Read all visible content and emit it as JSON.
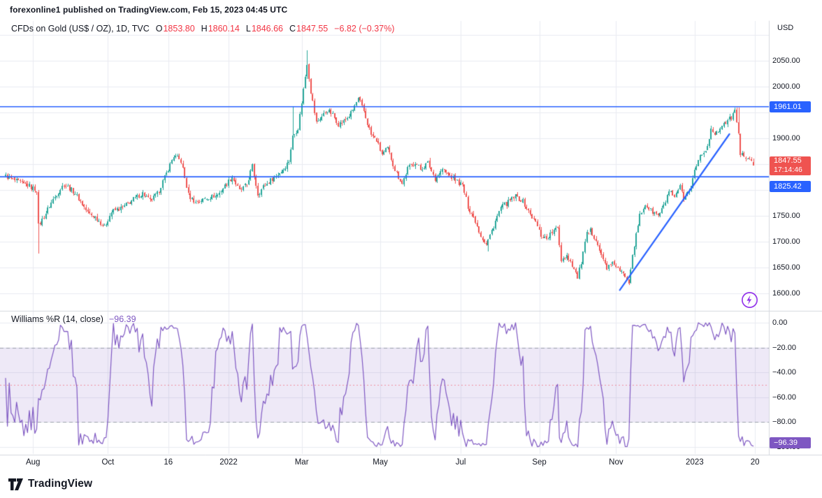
{
  "attribution": "forexonline1 published on TradingView.com, Feb 15, 2023 04:45 UTC",
  "footer": {
    "brand": "TradingView"
  },
  "icons": {
    "flash": "lightning-bolt-in-circle",
    "logo": "tradingview-mark"
  },
  "main_chart": {
    "legend": {
      "symbol": "CFDs on Gold (US$ / OZ), 1D, TVC",
      "o_label": "O",
      "o": "1853.80",
      "h_label": "H",
      "h": "1860.14",
      "l_label": "L",
      "l": "1846.66",
      "c_label": "C",
      "c": "1847.55",
      "change": "−6.82 (−0.37%)"
    },
    "price_axis": {
      "currency": "USD",
      "ticks": [
        {
          "value": 2050,
          "label": "2050.00"
        },
        {
          "value": 2000,
          "label": "2000.00"
        },
        {
          "value": 1900,
          "label": "1900.00"
        },
        {
          "value": 1750,
          "label": "1750.00"
        },
        {
          "value": 1700,
          "label": "1700.00"
        },
        {
          "value": 1650,
          "label": "1650.00"
        },
        {
          "value": 1600,
          "label": "1600.00"
        }
      ]
    },
    "badges": {
      "resistance": "1961.01",
      "last_price": "1847.55",
      "countdown": "17:14:46",
      "support": "1825.42"
    }
  },
  "indicator": {
    "title": "Williams %R (14, close)",
    "value": "−96.39",
    "badge": "−96.39",
    "ticks": [
      {
        "value": 0,
        "label": "0.00"
      },
      {
        "value": -20,
        "label": "−20.00"
      },
      {
        "value": -40,
        "label": "−40.00"
      },
      {
        "value": -60,
        "label": "−60.00"
      },
      {
        "value": -80,
        "label": "−80.00"
      },
      {
        "value": -100,
        "label": "−100.00"
      }
    ]
  },
  "chart_data": {
    "type": "candlestick",
    "title": "CFDs on Gold (US$ / OZ), 1D, TVC",
    "total_candles": 410,
    "y_axis": {
      "min": 1566,
      "max": 2127,
      "tick_step": 50,
      "visible_ticks": [
        1600,
        1650,
        1700,
        1750,
        1900,
        2000,
        2050
      ]
    },
    "ohlc_current": {
      "open": 1853.8,
      "high": 1860.14,
      "low": 1846.66,
      "close": 1847.55,
      "change": -6.82,
      "change_pct": -0.37
    },
    "levels": [
      {
        "value": 1961.01,
        "color": "#2962ff"
      },
      {
        "value": 1825.42,
        "color": "#2962ff"
      }
    ],
    "trendline": {
      "from": {
        "i": 336,
        "price": 1606
      },
      "to": {
        "i": 396,
        "price": 1908
      },
      "color": "#2962ff"
    },
    "time_ticks": [
      {
        "i": 15,
        "label": "Aug"
      },
      {
        "i": 56,
        "label": "Oct"
      },
      {
        "i": 89,
        "label": "16"
      },
      {
        "i": 122,
        "label": "2022"
      },
      {
        "i": 162,
        "label": "Mar"
      },
      {
        "i": 205,
        "label": "May"
      },
      {
        "i": 249,
        "label": "Jul"
      },
      {
        "i": 292,
        "label": "Sep"
      },
      {
        "i": 334,
        "label": "Nov"
      },
      {
        "i": 377,
        "label": "2023"
      },
      {
        "i": 410,
        "label": "20"
      }
    ],
    "price_anchors": [
      [
        0,
        1827
      ],
      [
        6,
        1816
      ],
      [
        12,
        1809
      ],
      [
        17,
        1800
      ],
      [
        18,
        1730
      ],
      [
        20,
        1742
      ],
      [
        26,
        1782
      ],
      [
        32,
        1812
      ],
      [
        38,
        1794
      ],
      [
        45,
        1756
      ],
      [
        50,
        1745
      ],
      [
        54,
        1728
      ],
      [
        58,
        1758
      ],
      [
        64,
        1766
      ],
      [
        70,
        1782
      ],
      [
        75,
        1794
      ],
      [
        79,
        1778
      ],
      [
        83,
        1792
      ],
      [
        87,
        1824
      ],
      [
        92,
        1866
      ],
      [
        96,
        1856
      ],
      [
        100,
        1790
      ],
      [
        104,
        1776
      ],
      [
        110,
        1784
      ],
      [
        116,
        1790
      ],
      [
        121,
        1812
      ],
      [
        124,
        1826
      ],
      [
        128,
        1798
      ],
      [
        132,
        1810
      ],
      [
        135,
        1846
      ],
      [
        138,
        1792
      ],
      [
        141,
        1806
      ],
      [
        146,
        1822
      ],
      [
        151,
        1836
      ],
      [
        155,
        1856
      ],
      [
        157,
        1903
      ],
      [
        160,
        1920
      ],
      [
        163,
        1995
      ],
      [
        165,
        2046
      ],
      [
        167,
        1990
      ],
      [
        170,
        1930
      ],
      [
        173,
        1942
      ],
      [
        176,
        1955
      ],
      [
        179,
        1945
      ],
      [
        182,
        1928
      ],
      [
        185,
        1932
      ],
      [
        189,
        1948
      ],
      [
        193,
        1976
      ],
      [
        196,
        1952
      ],
      [
        200,
        1906
      ],
      [
        203,
        1896
      ],
      [
        206,
        1868
      ],
      [
        209,
        1880
      ],
      [
        213,
        1840
      ],
      [
        217,
        1812
      ],
      [
        220,
        1842
      ],
      [
        224,
        1854
      ],
      [
        227,
        1840
      ],
      [
        231,
        1852
      ],
      [
        235,
        1822
      ],
      [
        239,
        1840
      ],
      [
        243,
        1827
      ],
      [
        247,
        1817
      ],
      [
        250,
        1808
      ],
      [
        253,
        1768
      ],
      [
        257,
        1740
      ],
      [
        260,
        1712
      ],
      [
        263,
        1694
      ],
      [
        265,
        1712
      ],
      [
        268,
        1740
      ],
      [
        271,
        1766
      ],
      [
        275,
        1776
      ],
      [
        279,
        1788
      ],
      [
        283,
        1778
      ],
      [
        287,
        1752
      ],
      [
        290,
        1738
      ],
      [
        293,
        1712
      ],
      [
        296,
        1706
      ],
      [
        299,
        1718
      ],
      [
        302,
        1726
      ],
      [
        304,
        1665
      ],
      [
        307,
        1674
      ],
      [
        310,
        1655
      ],
      [
        313,
        1630
      ],
      [
        315,
        1660
      ],
      [
        318,
        1714
      ],
      [
        320,
        1720
      ],
      [
        323,
        1706
      ],
      [
        326,
        1672
      ],
      [
        329,
        1650
      ],
      [
        333,
        1658
      ],
      [
        336,
        1642
      ],
      [
        339,
        1634
      ],
      [
        341,
        1624
      ],
      [
        343,
        1676
      ],
      [
        345,
        1712
      ],
      [
        347,
        1750
      ],
      [
        350,
        1772
      ],
      [
        353,
        1760
      ],
      [
        357,
        1750
      ],
      [
        360,
        1768
      ],
      [
        363,
        1798
      ],
      [
        366,
        1782
      ],
      [
        369,
        1808
      ],
      [
        371,
        1778
      ],
      [
        374,
        1798
      ],
      [
        377,
        1838
      ],
      [
        380,
        1866
      ],
      [
        383,
        1875
      ],
      [
        386,
        1918
      ],
      [
        389,
        1908
      ],
      [
        392,
        1928
      ],
      [
        395,
        1932
      ],
      [
        398,
        1945
      ],
      [
        399,
        1952
      ],
      [
        401,
        1912
      ],
      [
        402,
        1865
      ],
      [
        404,
        1868
      ],
      [
        406,
        1860
      ],
      [
        408,
        1853
      ],
      [
        409,
        1847.55
      ]
    ],
    "wick_overrides": [
      {
        "i": 18,
        "low": 1677
      },
      {
        "i": 157,
        "high": 1962
      },
      {
        "i": 165,
        "high": 2070
      },
      {
        "i": 264,
        "low": 1681
      },
      {
        "i": 341,
        "low": 1616
      },
      {
        "i": 399,
        "high": 1960
      },
      {
        "i": 401,
        "high": 1959
      }
    ],
    "indicator": {
      "name": "Williams %R",
      "period": 14,
      "source": "close",
      "last_value": -96.39,
      "overbought": -20,
      "oversold": -80,
      "middle": -50,
      "range": [
        0,
        -100
      ]
    },
    "colors": {
      "up": "#26a69a",
      "down": "#ef5350",
      "level_line": "#2962ff",
      "trend_line": "#2962ff",
      "wr_line": "#7e57c2",
      "band_fill": "rgba(126,87,194,0.13)",
      "band_line": "#9aa0ab",
      "middle_line": "rgba(242,54,69,0.5)",
      "grid": "#e9ebf0",
      "separator": "#d4d8de",
      "axis_text": "#131722",
      "badge_blue": "#2962ff",
      "badge_red": "#ef5350",
      "badge_purple": "#7e57c2",
      "flash": "#9334ea"
    }
  }
}
